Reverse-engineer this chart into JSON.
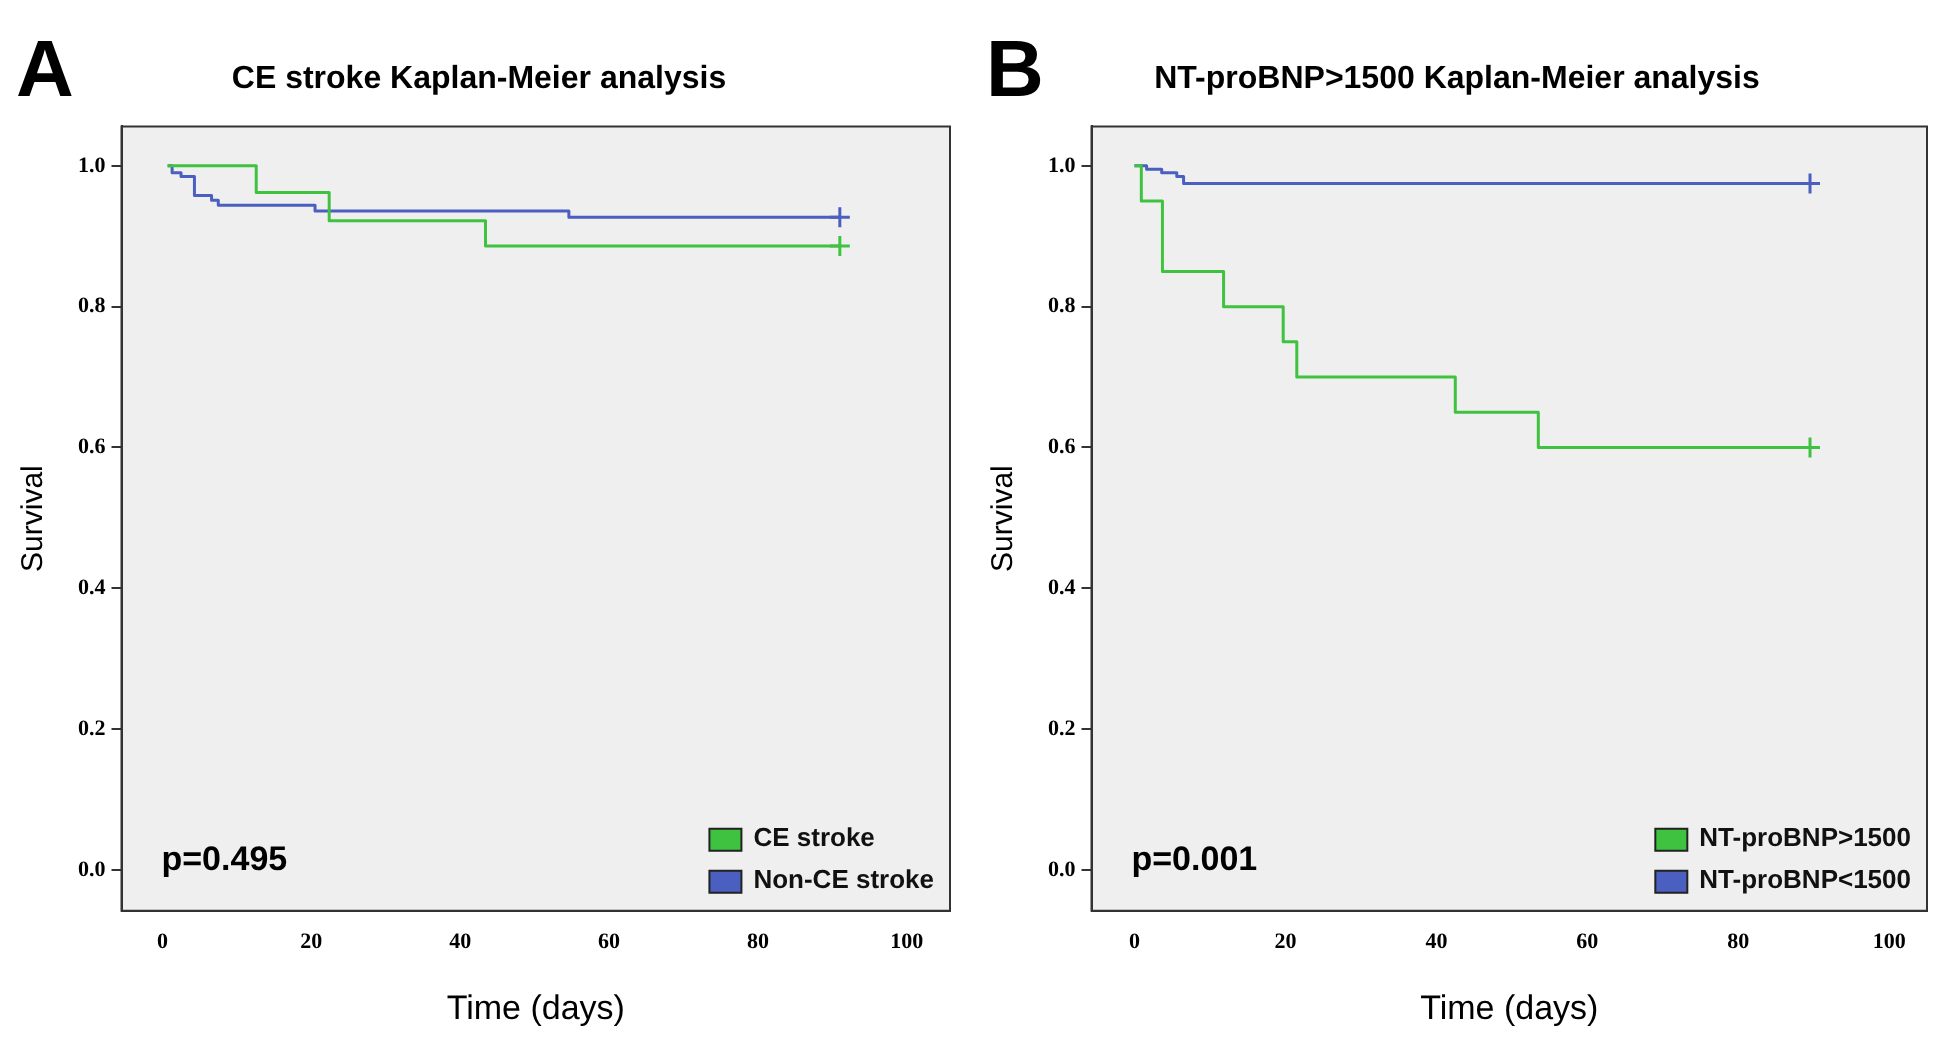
{
  "chart_data": [
    {
      "type": "step",
      "title": "CE stroke Kaplan-Meier analysis",
      "xlabel": "Time (days)",
      "ylabel": "Survival",
      "annotations": [
        "A",
        "p=0.495"
      ],
      "series": [
        {
          "name": "CE stroke",
          "color": "#3fc23f",
          "x": [
            0.7,
            12.6,
            22.4,
            43.4,
            91
          ],
          "values": [
            1.0,
            0.962,
            0.922,
            0.886,
            0.886
          ]
        },
        {
          "name": "Non-CE stroke",
          "color": "#4a5fc0",
          "x": [
            0.7,
            1.3,
            2.5,
            4.3,
            6.6,
            7.5,
            20.5,
            54.6,
            91
          ],
          "values": [
            1.0,
            0.99,
            0.985,
            0.958,
            0.951,
            0.944,
            0.936,
            0.927,
            0.927
          ]
        },
        {
          "type": "scatter",
          "marker": "cross",
          "color": "#3fc23f",
          "x": [
            91
          ],
          "values": [
            0.886
          ]
        },
        {
          "type": "scatter",
          "marker": "cross",
          "color": "#4a5fc0",
          "x": [
            91
          ],
          "values": [
            0.927
          ]
        }
      ],
      "xlim": [
        -5.5,
        105.8
      ],
      "ylim": [
        -0.058,
        1.056
      ],
      "xticks": [
        0,
        20,
        40,
        60,
        80,
        100
      ],
      "yticks": [
        {
          "value": 0,
          "label": "0.0"
        },
        {
          "value": 0.2,
          "label": "0.2"
        },
        {
          "value": 0.4,
          "label": "0.4"
        },
        {
          "value": 0.6,
          "label": "0.6"
        },
        {
          "value": 0.8,
          "label": "0.8"
        },
        {
          "value": 1,
          "label": "1.0"
        }
      ],
      "grid": false,
      "legend": "bottom right",
      "marker": "none"
    },
    {
      "type": "step",
      "title": "NT-proBNP>1500 Kaplan-Meier analysis",
      "xlabel": "Time (days)",
      "ylabel": "Survival",
      "annotations": [
        "B",
        "p=0.001"
      ],
      "series": [
        {
          "name": "NT-proBNP>1500",
          "color": "#3fc23f",
          "x": [
            0,
            0.9,
            3.7,
            11.8,
            19.7,
            21.5,
            42.5,
            53.5,
            89.5
          ],
          "values": [
            1.0,
            0.95,
            0.85,
            0.8,
            0.75,
            0.7,
            0.65,
            0.6,
            0.6
          ]
        },
        {
          "name": "NT-proBNP<1500",
          "color": "#4a5fc0",
          "x": [
            0,
            1.6,
            3.6,
            5.6,
            6.5,
            89.5
          ],
          "values": [
            1.0,
            0.995,
            0.99,
            0.985,
            0.975,
            0.975
          ]
        },
        {
          "type": "scatter",
          "marker": "cross",
          "color": "#3fc23f",
          "x": [
            89.5
          ],
          "values": [
            0.6
          ]
        },
        {
          "type": "scatter",
          "marker": "cross",
          "color": "#4a5fc0",
          "x": [
            89.5
          ],
          "values": [
            0.975
          ]
        }
      ],
      "xlim": [
        -5.7,
        105
      ],
      "ylim": [
        -0.058,
        1.056
      ],
      "xticks": [
        0,
        20,
        40,
        60,
        80,
        100
      ],
      "yticks": [
        {
          "value": 0,
          "label": "0.0"
        },
        {
          "value": 0.2,
          "label": "0.2"
        },
        {
          "value": 0.4,
          "label": "0.4"
        },
        {
          "value": 0.6,
          "label": "0.6"
        },
        {
          "value": 0.8,
          "label": "0.8"
        },
        {
          "value": 1,
          "label": "1.0"
        }
      ],
      "grid": false,
      "legend": "bottom right",
      "marker": "none"
    }
  ]
}
